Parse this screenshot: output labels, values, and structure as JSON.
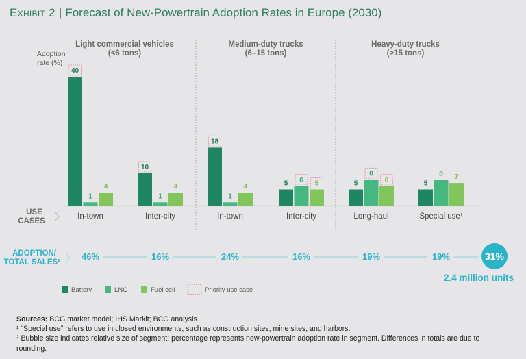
{
  "header": {
    "exhibit_label": "Exhibit 2",
    "separator": "|",
    "title": "Forecast of New-Powertrain Adoption Rates in Europe (2030)"
  },
  "colors": {
    "battery": "#1e8663",
    "lng": "#45b882",
    "fuel_cell": "#82c55b",
    "priority_box": "#e593a8",
    "accent_teal": "#2bb3c8",
    "title_green": "#2e7d62"
  },
  "chart_data": {
    "type": "bar",
    "title": "Forecast of New-Powertrain Adoption Rates in Europe (2030)",
    "ylabel": "Adoption rate (%)",
    "ylim": [
      0,
      40
    ],
    "grid": false,
    "legend_position": "bottom-left",
    "groups": [
      {
        "name": "Light commercial vehicles",
        "sub": "(<6 tons)",
        "categories": [
          "In-town",
          "Inter-city"
        ]
      },
      {
        "name": "Medium-duty trucks",
        "sub": "(6–15 tons)",
        "categories": [
          "In-town",
          "Inter-city"
        ]
      },
      {
        "name": "Heavy-duty trucks",
        "sub": "(>15 tons)",
        "categories": [
          "Long-haul",
          "Special use¹"
        ]
      }
    ],
    "categories": [
      "In-town",
      "Inter-city",
      "In-town",
      "Inter-city",
      "Long-haul",
      "Special use¹"
    ],
    "series": [
      {
        "name": "Battery",
        "values": [
          40,
          10,
          18,
          5,
          5,
          5
        ],
        "priority": [
          true,
          true,
          true,
          false,
          false,
          false
        ]
      },
      {
        "name": "LNG",
        "values": [
          1,
          1,
          1,
          6,
          8,
          8
        ],
        "priority": [
          false,
          false,
          false,
          true,
          true,
          false
        ]
      },
      {
        "name": "Fuel cell",
        "values": [
          4,
          4,
          4,
          5,
          6,
          7
        ],
        "priority": [
          false,
          false,
          false,
          true,
          true,
          false
        ]
      }
    ],
    "row_labels": {
      "use_cases": [
        "USE",
        "CASES"
      ],
      "adoption": [
        "ADOPTION/",
        "TOTAL SALES²"
      ]
    },
    "adoption_total_sales": [
      "46%",
      "16%",
      "24%",
      "16%",
      "19%",
      "19%"
    ],
    "total": {
      "value": "31%",
      "units": "2.4 million units"
    },
    "legend": [
      "Battery",
      "LNG",
      "Fuel cell",
      "Priority use case"
    ]
  },
  "notes": {
    "sources_label": "Sources:",
    "sources_text": " BCG market model; IHS Markit; BCG analysis.",
    "note1": "¹ “Special use” refers to use in closed environments, such as construction sites, mine sites, and harbors.",
    "note2": "² Bubble size indicates relative size of segment; percentage represents new-powertrain adoption rate in segment. Differences in totals are due to rounding."
  }
}
